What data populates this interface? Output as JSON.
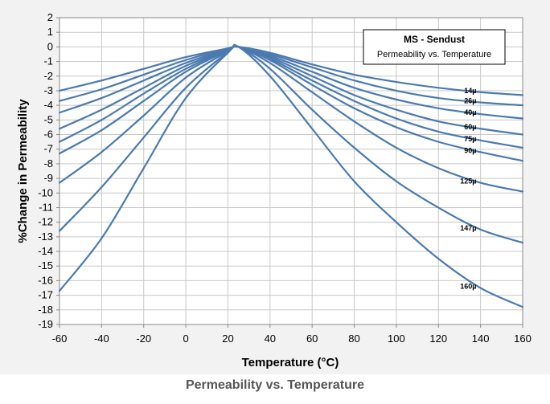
{
  "caption": "Permeability vs. Temperature",
  "chart_data": {
    "type": "line",
    "title": "MS - Sendust",
    "subtitle": "Permeability vs. Temperature",
    "xlabel": "Temperature (°C)",
    "ylabel": "%Change in Permeability",
    "xlim": [
      -60,
      160
    ],
    "ylim": [
      -19,
      2
    ],
    "xticks": [
      -60,
      -40,
      -20,
      0,
      20,
      40,
      60,
      80,
      100,
      120,
      140,
      160
    ],
    "yticks": [
      2,
      1,
      0,
      -1,
      -2,
      -3,
      -4,
      -5,
      -6,
      -7,
      -8,
      -9,
      -10,
      -11,
      -12,
      -13,
      -14,
      -15,
      -16,
      -17,
      -18,
      -19
    ],
    "grid": true,
    "line_color": "#4a7ab0",
    "x": [
      -60,
      -40,
      -20,
      0,
      20,
      25,
      40,
      60,
      80,
      100,
      120,
      140,
      160
    ],
    "series": [
      {
        "name": "14µ",
        "values": [
          -3.0,
          -2.3,
          -1.5,
          -0.7,
          -0.1,
          0,
          -0.4,
          -1.2,
          -1.9,
          -2.4,
          -2.8,
          -3.1,
          -3.3
        ]
      },
      {
        "name": "26µ",
        "values": [
          -3.7,
          -2.9,
          -1.9,
          -0.9,
          -0.1,
          0,
          -0.5,
          -1.4,
          -2.3,
          -3.0,
          -3.5,
          -3.8,
          -4.0
        ]
      },
      {
        "name": "40µ",
        "values": [
          -4.5,
          -3.5,
          -2.3,
          -1.1,
          -0.15,
          0,
          -0.6,
          -1.7,
          -2.8,
          -3.6,
          -4.2,
          -4.6,
          -4.9
        ]
      },
      {
        "name": "60µ",
        "values": [
          -5.6,
          -4.3,
          -2.8,
          -1.3,
          -0.2,
          0,
          -0.7,
          -2.0,
          -3.3,
          -4.3,
          -5.1,
          -5.6,
          -6.0
        ]
      },
      {
        "name": "75µ",
        "values": [
          -6.5,
          -5.0,
          -3.2,
          -1.5,
          -0.2,
          0,
          -0.8,
          -2.3,
          -3.7,
          -4.9,
          -5.8,
          -6.4,
          -6.9
        ]
      },
      {
        "name": "90µ",
        "values": [
          -7.3,
          -5.7,
          -3.7,
          -1.7,
          -0.25,
          0,
          -0.9,
          -2.6,
          -4.2,
          -5.5,
          -6.5,
          -7.2,
          -7.8
        ]
      },
      {
        "name": "125µ",
        "values": [
          -9.3,
          -7.2,
          -4.7,
          -2.1,
          -0.3,
          0,
          -1.1,
          -3.1,
          -5.1,
          -6.9,
          -8.3,
          -9.3,
          -9.9
        ]
      },
      {
        "name": "147µ",
        "values": [
          -12.6,
          -9.6,
          -6.2,
          -2.8,
          -0.35,
          0,
          -1.5,
          -4.3,
          -6.9,
          -9.2,
          -11.0,
          -12.5,
          -13.4
        ]
      },
      {
        "name": "160µ",
        "values": [
          -16.7,
          -13.1,
          -8.3,
          -3.5,
          -0.4,
          0,
          -2.0,
          -5.6,
          -9.2,
          -12.0,
          -14.5,
          -16.5,
          -17.8
        ]
      }
    ]
  }
}
